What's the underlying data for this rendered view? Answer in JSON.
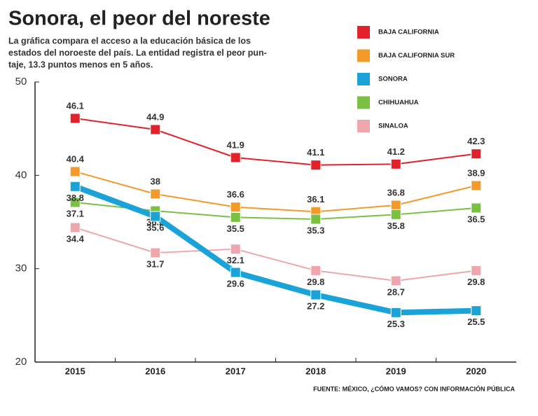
{
  "chart_data": {
    "type": "line",
    "title": "Sonora, el peor del noreste",
    "subtitle": [
      "La gráfica compara el acceso a la educación básica de los",
      "estados del noroeste del país. La entidad registra el peor pun-",
      "taje, 13.3 puntos menos en 5 años."
    ],
    "source": "FUENTE: MÉXICO, ¿CÓMO VAMOS? CON INFORMACIÓN PÚBLICA",
    "categories": [
      "2015",
      "2016",
      "2017",
      "2018",
      "2019",
      "2020"
    ],
    "ylim": [
      20,
      50
    ],
    "yticks": [
      20,
      30,
      40,
      50
    ],
    "legend": "top-right",
    "series": [
      {
        "name": "BAJA CALIFORNIA",
        "color": "#e3212b",
        "values": [
          46.1,
          44.9,
          41.9,
          41.1,
          41.2,
          42.3
        ]
      },
      {
        "name": "BAJA CALIFORNIA SUR",
        "color": "#f39a2b",
        "values": [
          40.4,
          38,
          36.6,
          36.1,
          36.8,
          38.9
        ]
      },
      {
        "name": "SONORA",
        "color": "#1aa3d9",
        "highlight": true,
        "values": [
          38.8,
          35.6,
          29.6,
          27.2,
          25.3,
          25.5
        ]
      },
      {
        "name": "CHIHUAHUA",
        "color": "#7ac143",
        "values": [
          37.1,
          36.2,
          35.5,
          35.3,
          35.8,
          36.5
        ]
      },
      {
        "name": "SINALOA",
        "color": "#f0a6ad",
        "values": [
          34.4,
          31.7,
          32.1,
          29.8,
          28.7,
          29.8
        ]
      }
    ]
  }
}
